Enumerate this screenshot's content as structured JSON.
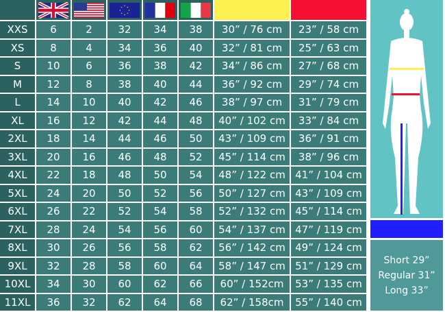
{
  "headers": {
    "flags": [
      "uk-flag",
      "us-flag",
      "eu-flag",
      "france-flag",
      "italy-flag"
    ],
    "bust_color": "#fdf050",
    "waist_color": "#f40f33",
    "inseam_color": "#1f1fff"
  },
  "rows": [
    [
      "XXS",
      "6",
      "2",
      "32",
      "34",
      "38",
      "30” / 76 cm",
      "23” / 58 cm"
    ],
    [
      "XS",
      "8",
      "4",
      "34",
      "36",
      "40",
      "32” / 81 cm",
      "25” / 63 cm"
    ],
    [
      "S",
      "10",
      "6",
      "36",
      "38",
      "42",
      "34” / 86 cm",
      "27” / 68 cm"
    ],
    [
      "M",
      "12",
      "8",
      "38",
      "40",
      "44",
      "36” / 92 cm",
      "29” / 74 cm"
    ],
    [
      "L",
      "14",
      "10",
      "40",
      "42",
      "46",
      "38” / 97 cm",
      "31” / 79 cm"
    ],
    [
      "XL",
      "16",
      "12",
      "42",
      "44",
      "48",
      "40” / 102 cm",
      "33” / 84 cm"
    ],
    [
      "2XL",
      "18",
      "14",
      "44",
      "46",
      "50",
      "43” / 109 cm",
      "36” / 91 cm"
    ],
    [
      "3XL",
      "20",
      "16",
      "46",
      "48",
      "52",
      "45” / 114 cm",
      "38” / 96 cm"
    ],
    [
      "4XL",
      "22",
      "18",
      "48",
      "50",
      "54",
      "48” / 122 cm",
      "41” / 104 cm"
    ],
    [
      "5XL",
      "24",
      "20",
      "50",
      "52",
      "56",
      "50” / 127 cm",
      "43” / 109 cm"
    ],
    [
      "6XL",
      "26",
      "22",
      "52",
      "54",
      "58",
      "52” / 132 cm",
      "45” / 114 cm"
    ],
    [
      "7XL",
      "28",
      "24",
      "54",
      "56",
      "60",
      "54” / 137 cm",
      "47” / 119 cm"
    ],
    [
      "8XL",
      "30",
      "26",
      "56",
      "58",
      "62",
      "56” / 142 cm",
      "49” / 124 cm"
    ],
    [
      "9XL",
      "32",
      "28",
      "58",
      "60",
      "64",
      "58” / 147 cm",
      "51” / 129 cm"
    ],
    [
      "10XL",
      "34",
      "30",
      "60",
      "62",
      "66",
      "60” / 152cm",
      "53” / 135 cm"
    ],
    [
      "11XL",
      "36",
      "32",
      "62",
      "64",
      "68",
      "62” / 158cm",
      "55” / 140 cm"
    ]
  ],
  "inseam": [
    "Short 29”",
    "Regular 31”",
    "Long 33”"
  ]
}
